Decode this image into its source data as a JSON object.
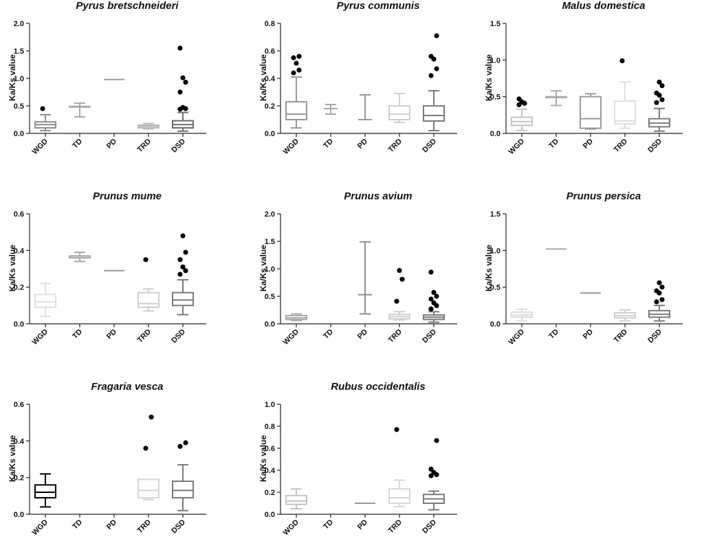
{
  "figure": {
    "series_colors": {
      "WGD": "#a9a9a9",
      "TD": "#b3b3b3",
      "PD": "#8f8f8f",
      "TRD": "#cccccc",
      "DSD": "#7a7a7a"
    },
    "outlier_color": "#000000"
  },
  "chart_data": [
    {
      "type": "box",
      "title": "Pyrus bretschneideri",
      "ylabel": "Ka/Ks value",
      "ylim": [
        0,
        2.0
      ],
      "yticks": [
        "0.0",
        "0.5",
        "1.0",
        "1.5",
        "2.0"
      ],
      "categories": [
        "WGD",
        "TD",
        "PD",
        "TRD",
        "DSD"
      ],
      "boxes": [
        {
          "cat": "WGD",
          "color": "#8f8f8f",
          "min": 0.05,
          "q1": 0.1,
          "median": 0.16,
          "q3": 0.21,
          "max": 0.34,
          "outliers": [
            0.45
          ]
        },
        {
          "cat": "TD",
          "color": "#aaaaaa",
          "min": 0.3,
          "q1": 0.48,
          "median": 0.48,
          "q3": 0.49,
          "max": 0.55,
          "outliers": []
        },
        {
          "cat": "PD",
          "color": "#999999",
          "min": 0.98,
          "q1": 0.98,
          "median": 0.98,
          "q3": 0.98,
          "max": 0.98,
          "outliers": []
        },
        {
          "cat": "TRD",
          "color": "#bbbbbb",
          "min": 0.08,
          "q1": 0.1,
          "median": 0.13,
          "q3": 0.15,
          "max": 0.18,
          "outliers": []
        },
        {
          "cat": "DSD",
          "color": "#6e6e6e",
          "min": 0.04,
          "q1": 0.1,
          "median": 0.16,
          "q3": 0.23,
          "max": 0.38,
          "outliers": [
            0.44,
            0.45,
            0.47,
            0.75,
            0.93,
            1.01,
            1.55
          ]
        }
      ]
    },
    {
      "type": "box",
      "title": "Pyrus communis",
      "ylabel": "Ka/Ks value",
      "ylim": [
        0,
        0.8
      ],
      "yticks": [
        "0.0",
        "0.2",
        "0.4",
        "0.6",
        "0.8"
      ],
      "categories": [
        "WGD",
        "TD",
        "PD",
        "TRD",
        "DSD"
      ],
      "boxes": [
        {
          "cat": "WGD",
          "color": "#999999",
          "min": 0.04,
          "q1": 0.1,
          "median": 0.14,
          "q3": 0.23,
          "max": 0.41,
          "outliers": [
            0.44,
            0.46,
            0.51,
            0.55,
            0.56
          ]
        },
        {
          "cat": "TD",
          "color": "#aaaaaa",
          "min": 0.14,
          "q1": 0.18,
          "median": 0.18,
          "q3": 0.18,
          "max": 0.21,
          "outliers": []
        },
        {
          "cat": "PD",
          "color": "#999999",
          "min": 0.1,
          "q1": 0.1,
          "median": 0.1,
          "q3": 0.1,
          "max": 0.28,
          "outliers": []
        },
        {
          "cat": "TRD",
          "color": "#cfcfcf",
          "min": 0.08,
          "q1": 0.1,
          "median": 0.14,
          "q3": 0.2,
          "max": 0.29,
          "outliers": []
        },
        {
          "cat": "DSD",
          "color": "#7a7a7a",
          "min": 0.02,
          "q1": 0.09,
          "median": 0.13,
          "q3": 0.2,
          "max": 0.31,
          "outliers": [
            0.42,
            0.47,
            0.54,
            0.56,
            0.71
          ]
        }
      ]
    },
    {
      "type": "box",
      "title": "Malus domestica",
      "ylabel": "Ka/Ks value",
      "ylim": [
        0,
        1.5
      ],
      "yticks": [
        "0.0",
        "0.5",
        "1.0",
        "1.5"
      ],
      "categories": [
        "WGD",
        "TD",
        "PD",
        "TRD",
        "DSD"
      ],
      "boxes": [
        {
          "cat": "WGD",
          "color": "#c4c4c4",
          "min": 0.04,
          "q1": 0.11,
          "median": 0.16,
          "q3": 0.22,
          "max": 0.33,
          "outliers": [
            0.39,
            0.41,
            0.43,
            0.47
          ]
        },
        {
          "cat": "TD",
          "color": "#aaaaaa",
          "min": 0.38,
          "q1": 0.49,
          "median": 0.49,
          "q3": 0.5,
          "max": 0.58,
          "outliers": []
        },
        {
          "cat": "PD",
          "color": "#999999",
          "min": 0.06,
          "q1": 0.07,
          "median": 0.2,
          "q3": 0.5,
          "max": 0.54,
          "outliers": []
        },
        {
          "cat": "TRD",
          "color": "#dedede",
          "min": 0.07,
          "q1": 0.13,
          "median": 0.17,
          "q3": 0.44,
          "max": 0.7,
          "outliers": [
            0.99
          ]
        },
        {
          "cat": "DSD",
          "color": "#7a7a7a",
          "min": 0.03,
          "q1": 0.09,
          "median": 0.14,
          "q3": 0.2,
          "max": 0.34,
          "outliers": [
            0.42,
            0.46,
            0.52,
            0.55,
            0.65,
            0.7
          ]
        }
      ]
    },
    {
      "type": "box",
      "title": "Prunus mume",
      "ylabel": "Ka/Ks value",
      "ylim": [
        0,
        0.6
      ],
      "yticks": [
        "0.0",
        "0.2",
        "0.4",
        "0.6"
      ],
      "categories": [
        "WGD",
        "TD",
        "PD",
        "TRD",
        "DSD"
      ],
      "boxes": [
        {
          "cat": "WGD",
          "color": "#e0e0e0",
          "min": 0.04,
          "q1": 0.09,
          "median": 0.12,
          "q3": 0.16,
          "max": 0.22,
          "outliers": []
        },
        {
          "cat": "TD",
          "color": "#aaaaaa",
          "min": 0.34,
          "q1": 0.36,
          "median": 0.37,
          "q3": 0.37,
          "max": 0.39,
          "outliers": []
        },
        {
          "cat": "PD",
          "color": "#999999",
          "min": 0.29,
          "q1": 0.29,
          "median": 0.29,
          "q3": 0.29,
          "max": 0.29,
          "outliers": []
        },
        {
          "cat": "TRD",
          "color": "#cfcfcf",
          "min": 0.07,
          "q1": 0.09,
          "median": 0.11,
          "q3": 0.17,
          "max": 0.19,
          "outliers": [
            0.35
          ]
        },
        {
          "cat": "DSD",
          "color": "#7a7a7a",
          "min": 0.05,
          "q1": 0.1,
          "median": 0.13,
          "q3": 0.17,
          "max": 0.24,
          "outliers": [
            0.27,
            0.29,
            0.31,
            0.35,
            0.39,
            0.48
          ]
        }
      ]
    },
    {
      "type": "box",
      "title": "Prunus avium",
      "ylabel": "Ka/Ks value",
      "ylim": [
        0,
        2.0
      ],
      "yticks": [
        "0.0",
        "0.5",
        "1.0",
        "1.5",
        "2.0"
      ],
      "categories": [
        "WGD",
        "TD",
        "PD",
        "TRD",
        "DSD"
      ],
      "boxes": [
        {
          "cat": "WGD",
          "color": "#aaaaaa",
          "min": 0.06,
          "q1": 0.08,
          "median": 0.11,
          "q3": 0.15,
          "max": 0.18,
          "outliers": []
        },
        {
          "cat": "PD",
          "color": "#8f8f8f",
          "min": 0.18,
          "q1": 0.53,
          "median": 0.53,
          "q3": 0.53,
          "max": 1.49,
          "outliers": []
        },
        {
          "cat": "TRD",
          "color": "#cfcfcf",
          "min": 0.07,
          "q1": 0.09,
          "median": 0.13,
          "q3": 0.17,
          "max": 0.22,
          "outliers": [
            0.41,
            0.81,
            0.97
          ]
        },
        {
          "cat": "DSD",
          "color": "#7a7a7a",
          "min": 0.03,
          "q1": 0.08,
          "median": 0.12,
          "q3": 0.16,
          "max": 0.22,
          "outliers": [
            0.27,
            0.33,
            0.38,
            0.45,
            0.5,
            0.57,
            0.94
          ]
        }
      ]
    },
    {
      "type": "box",
      "title": "Prunus persica",
      "ylabel": "Ka/Ks value",
      "ylim": [
        0,
        1.5
      ],
      "yticks": [
        "0.0",
        "0.5",
        "1.0",
        "1.5"
      ],
      "categories": [
        "WGD",
        "TD",
        "PD",
        "TRD",
        "DSD"
      ],
      "boxes": [
        {
          "cat": "WGD",
          "color": "#dcdcdc",
          "min": 0.04,
          "q1": 0.09,
          "median": 0.12,
          "q3": 0.16,
          "max": 0.2,
          "outliers": []
        },
        {
          "cat": "TD",
          "color": "#aaaaaa",
          "min": 1.02,
          "q1": 1.02,
          "median": 1.02,
          "q3": 1.02,
          "max": 1.02,
          "outliers": []
        },
        {
          "cat": "PD",
          "color": "#999999",
          "min": 0.42,
          "q1": 0.42,
          "median": 0.42,
          "q3": 0.42,
          "max": 0.42,
          "outliers": []
        },
        {
          "cat": "TRD",
          "color": "#cfcfcf",
          "min": 0.04,
          "q1": 0.08,
          "median": 0.11,
          "q3": 0.15,
          "max": 0.19,
          "outliers": []
        },
        {
          "cat": "DSD",
          "color": "#7a7a7a",
          "min": 0.04,
          "q1": 0.09,
          "median": 0.13,
          "q3": 0.18,
          "max": 0.25,
          "outliers": [
            0.3,
            0.33,
            0.42,
            0.45,
            0.5,
            0.56
          ]
        }
      ]
    },
    {
      "type": "box",
      "title": "Fragaria vesca",
      "ylabel": "Ka/Ks value",
      "ylim": [
        0,
        0.6
      ],
      "yticks": [
        "0.0",
        "0.2",
        "0.4",
        "0.6"
      ],
      "categories": [
        "WGD",
        "TD",
        "PD",
        "TRD",
        "DSD"
      ],
      "boxes": [
        {
          "cat": "WGD",
          "color": "#000000",
          "min": 0.04,
          "q1": 0.09,
          "median": 0.12,
          "q3": 0.16,
          "max": 0.22,
          "outliers": []
        },
        {
          "cat": "TRD",
          "color": "#d6d6d6",
          "min": 0.08,
          "q1": 0.09,
          "median": 0.13,
          "q3": 0.19,
          "max": 0.19,
          "outliers": [
            0.36,
            0.53
          ]
        },
        {
          "cat": "DSD",
          "color": "#7a7a7a",
          "min": 0.02,
          "q1": 0.09,
          "median": 0.13,
          "q3": 0.18,
          "max": 0.27,
          "outliers": [
            0.37,
            0.39
          ]
        }
      ]
    },
    {
      "type": "box",
      "title": "Rubus occidentalis",
      "ylabel": "Ka/Ks value",
      "ylim": [
        0,
        1.0
      ],
      "yticks": [
        "0.0",
        "0.2",
        "0.4",
        "0.6",
        "0.8",
        "1.0"
      ],
      "categories": [
        "WGD",
        "TD",
        "PD",
        "TRD",
        "DSD"
      ],
      "boxes": [
        {
          "cat": "WGD",
          "color": "#c4c4c4",
          "min": 0.05,
          "q1": 0.09,
          "median": 0.12,
          "q3": 0.17,
          "max": 0.23,
          "outliers": []
        },
        {
          "cat": "PD",
          "color": "#999999",
          "min": 0.1,
          "q1": 0.1,
          "median": 0.1,
          "q3": 0.1,
          "max": 0.1,
          "outliers": []
        },
        {
          "cat": "TRD",
          "color": "#d6d6d6",
          "min": 0.07,
          "q1": 0.1,
          "median": 0.15,
          "q3": 0.23,
          "max": 0.31,
          "outliers": [
            0.77
          ]
        },
        {
          "cat": "DSD",
          "color": "#7a7a7a",
          "min": 0.04,
          "q1": 0.1,
          "median": 0.14,
          "q3": 0.18,
          "max": 0.21,
          "outliers": [
            0.35,
            0.36,
            0.38,
            0.41,
            0.67
          ]
        }
      ]
    }
  ]
}
